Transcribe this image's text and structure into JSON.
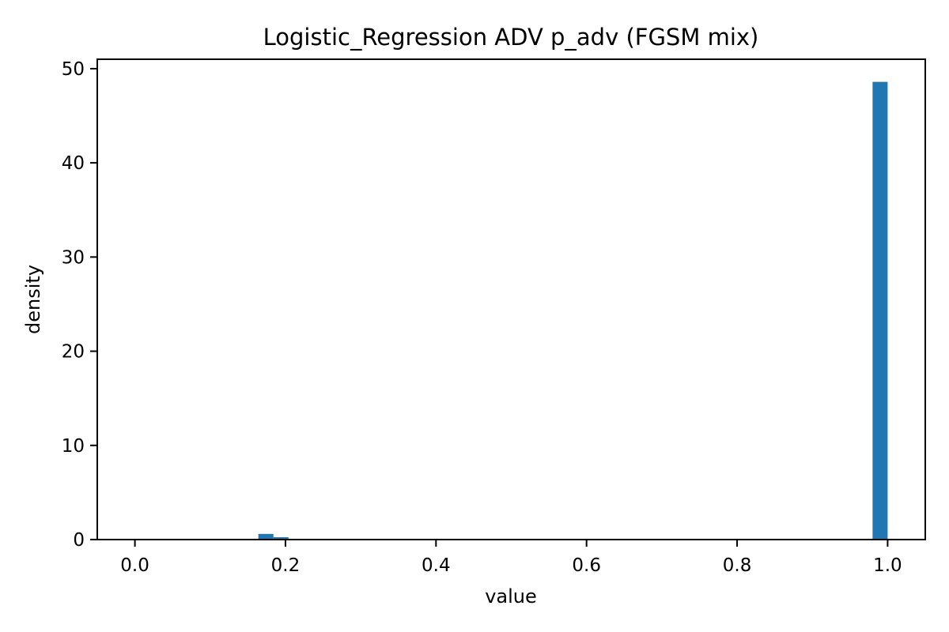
{
  "chart_data": {
    "type": "bar",
    "title": "Logistic_Regression ADV p_adv (FGSM mix)",
    "xlabel": "value",
    "ylabel": "density",
    "xlim": [
      -0.05,
      1.05
    ],
    "ylim": [
      0,
      51
    ],
    "xticks": [
      0.0,
      0.2,
      0.4,
      0.6,
      0.8,
      1.0
    ],
    "xtick_labels": [
      "0.0",
      "0.2",
      "0.4",
      "0.6",
      "0.8",
      "1.0"
    ],
    "yticks": [
      0,
      10,
      20,
      30,
      40,
      50
    ],
    "ytick_labels": [
      "0",
      "10",
      "20",
      "30",
      "40",
      "50"
    ],
    "grid": false,
    "legend": "none",
    "bar_color": "#1f77b4",
    "series": [
      {
        "bins": [
          {
            "x0": 0.164,
            "x1": 0.184,
            "value": 0.6
          },
          {
            "x0": 0.184,
            "x1": 0.204,
            "value": 0.25
          },
          {
            "x0": 0.98,
            "x1": 1.0,
            "value": 48.6
          }
        ]
      }
    ]
  }
}
